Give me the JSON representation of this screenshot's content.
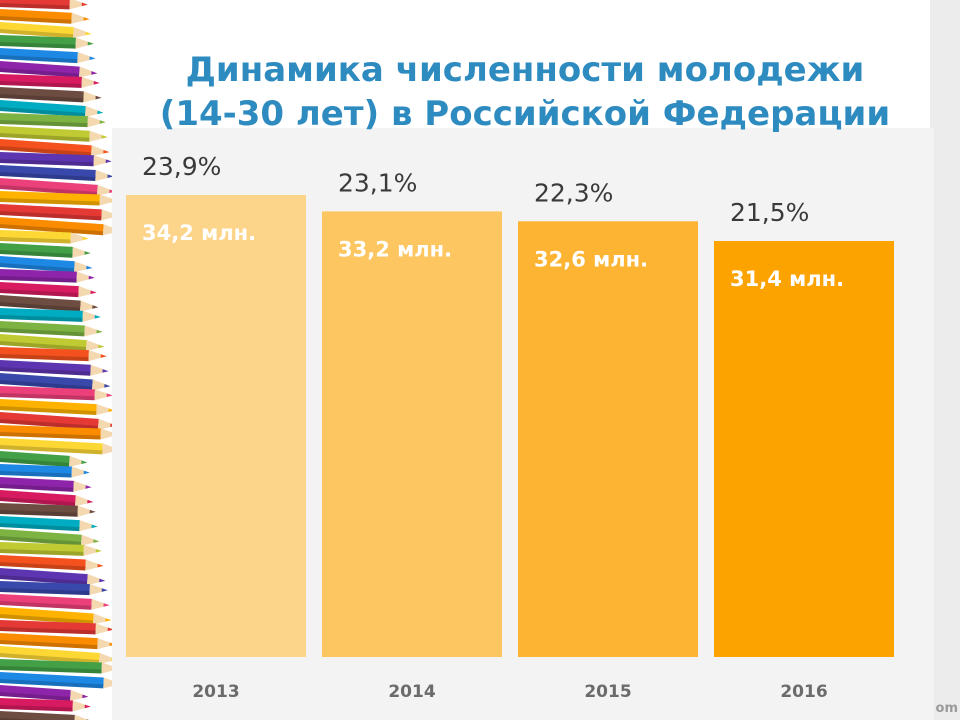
{
  "title_line1": "Динамика численности молодежи",
  "title_line2": "(14-30 лет) в Российской Федерации",
  "footer": "om",
  "colors": {
    "title": "#2e8bc0",
    "bars": [
      "#fdd58a",
      "#fdc660",
      "#fdb433",
      "#fda300"
    ]
  },
  "chart_data": {
    "type": "bar",
    "categories": [
      "2013",
      "2014",
      "2015",
      "2016"
    ],
    "series": [
      {
        "values": [
          34.2,
          33.2,
          32.6,
          31.4
        ]
      }
    ],
    "percent_labels": [
      "23,9%",
      "23,1%",
      "22,3%",
      "21,5%"
    ],
    "value_labels": [
      "34,2 млн.",
      "33,2 млн.",
      "32,6 млн.",
      "31,4 млн."
    ],
    "unit": "млн.",
    "xlabel": "",
    "ylabel": "",
    "grid": false,
    "legend": "none"
  }
}
